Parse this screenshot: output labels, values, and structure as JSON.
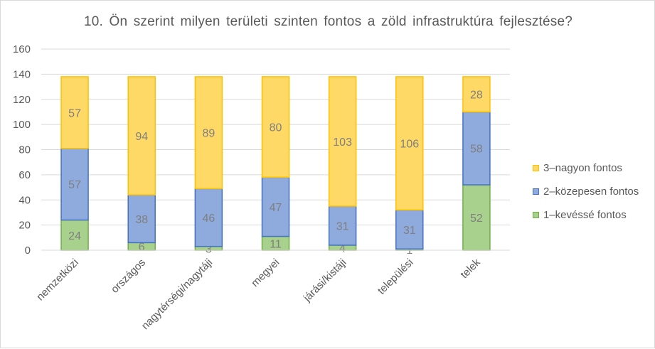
{
  "chart_data": {
    "type": "bar",
    "stacked": true,
    "title": "10. Ön szerint milyen területi szinten fontos a zöld infrastruktúra fejlesztése?",
    "categories": [
      "nemzetközi",
      "országos",
      "nagytérségi/nagytáji",
      "megyei",
      "járási/kistáji",
      "települési",
      "telek"
    ],
    "series": [
      {
        "name": "1–kevéssé fontos",
        "color": "#a9d18e",
        "border": "#70ad47",
        "values": [
          24,
          6,
          3,
          11,
          4,
          1,
          52
        ]
      },
      {
        "name": "2–közepesen fontos",
        "color": "#8faadc",
        "border": "#4472c4",
        "values": [
          57,
          38,
          46,
          47,
          31,
          31,
          58
        ]
      },
      {
        "name": "3–nagyon fontos",
        "color": "#ffd966",
        "border": "#ffc000",
        "values": [
          57,
          94,
          89,
          80,
          103,
          106,
          28
        ]
      }
    ],
    "ylim": [
      0,
      160
    ],
    "yticks": [
      0,
      20,
      40,
      60,
      80,
      100,
      120,
      140,
      160
    ],
    "grid": true,
    "legend_position": "right"
  }
}
